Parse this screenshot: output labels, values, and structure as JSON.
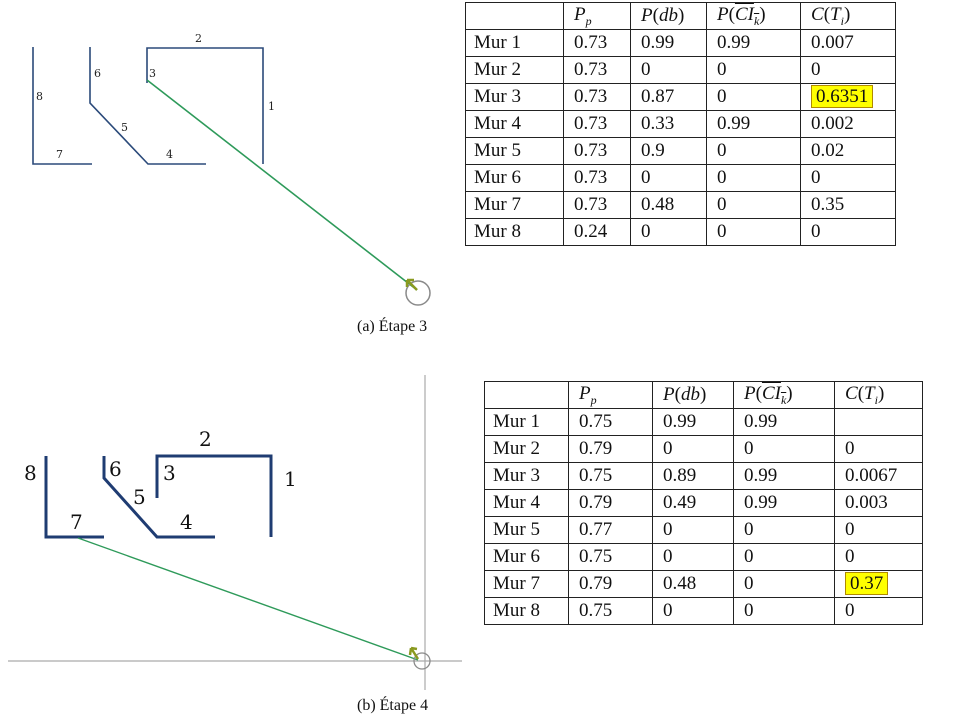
{
  "figure_a": {
    "caption": "(a) Étape 3",
    "wall_labels": [
      "1",
      "2",
      "3",
      "4",
      "5",
      "6",
      "7",
      "8"
    ],
    "table": {
      "headers": [
        "",
        "P_p",
        "P(db)",
        "P(CI_k)",
        "C(T_i)"
      ],
      "rows": [
        {
          "wall": "Mur 1",
          "pp": "0.73",
          "pdb": "0.99",
          "pci": "0.99",
          "ct": "0.007"
        },
        {
          "wall": "Mur 2",
          "pp": "0.73",
          "pdb": "0",
          "pci": "0",
          "ct": "0"
        },
        {
          "wall": "Mur 3",
          "pp": "0.73",
          "pdb": "0.87",
          "pci": "0",
          "ct": "0.6351"
        },
        {
          "wall": "Mur 4",
          "pp": "0.73",
          "pdb": "0.33",
          "pci": "0.99",
          "ct": "0.002"
        },
        {
          "wall": "Mur 5",
          "pp": "0.73",
          "pdb": "0.9",
          "pci": "0",
          "ct": "0.02"
        },
        {
          "wall": "Mur 6",
          "pp": "0.73",
          "pdb": "0",
          "pci": "0",
          "ct": "0"
        },
        {
          "wall": "Mur 7",
          "pp": "0.73",
          "pdb": "0.48",
          "pci": "0",
          "ct": "0.35"
        },
        {
          "wall": "Mur 8",
          "pp": "0.24",
          "pdb": "0",
          "pci": "0",
          "ct": "0"
        }
      ],
      "highlight_color": "#ffff00"
    }
  },
  "figure_b": {
    "caption": "(b) Étape 4",
    "wall_labels": [
      "1",
      "2",
      "3",
      "4",
      "5",
      "6",
      "7",
      "8"
    ],
    "table": {
      "rows": [
        {
          "wall": "Mur 1",
          "pp": "0.75",
          "pdb": "0.99",
          "pci": "0.99",
          "ct": ""
        },
        {
          "wall": "Mur 2",
          "pp": "0.79",
          "pdb": "0",
          "pci": "0",
          "ct": "0"
        },
        {
          "wall": "Mur 3",
          "pp": "0.75",
          "pdb": "0.89",
          "pci": "0.99",
          "ct": "0.0067"
        },
        {
          "wall": "Mur 4",
          "pp": "0.79",
          "pdb": "0.49",
          "pci": "0.99",
          "ct": "0.003"
        },
        {
          "wall": "Mur 5",
          "pp": "0.77",
          "pdb": "0",
          "pci": "0",
          "ct": "0"
        },
        {
          "wall": "Mur 6",
          "pp": "0.75",
          "pdb": "0",
          "pci": "0",
          "ct": "0"
        },
        {
          "wall": "Mur 7",
          "pp": "0.79",
          "pdb": "0.48",
          "pci": "0",
          "ct": "0.37"
        },
        {
          "wall": "Mur 8",
          "pp": "0.75",
          "pdb": "0",
          "pci": "0",
          "ct": "0"
        }
      ]
    }
  },
  "colors": {
    "wall": "#2b4a7a",
    "ray": "#2e9a5a",
    "robot": "#8a8a8a",
    "arrow": "#8a9a20",
    "highlight": "#ffff00"
  }
}
